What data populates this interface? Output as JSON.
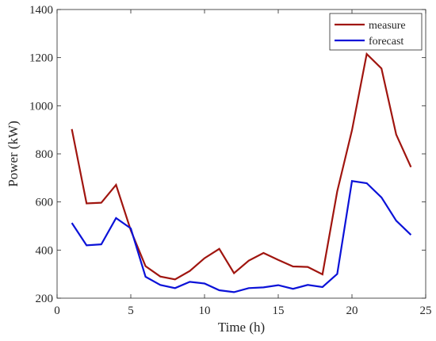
{
  "chart_data": {
    "type": "line",
    "title": "",
    "xlabel": "Time (h)",
    "ylabel": "Power (kW)",
    "xlim": [
      0,
      25
    ],
    "ylim": [
      200,
      1400
    ],
    "xticks": [
      0,
      5,
      10,
      15,
      20,
      25
    ],
    "yticks": [
      200,
      400,
      600,
      800,
      1000,
      1200,
      1400
    ],
    "grid": false,
    "legend": "top-right",
    "x": [
      1,
      2,
      3,
      4,
      5,
      6,
      7,
      8,
      9,
      10,
      11,
      12,
      13,
      14,
      15,
      16,
      17,
      18,
      19,
      20,
      21,
      22,
      23,
      24
    ],
    "series": [
      {
        "name": "measure",
        "color": "#a0150f",
        "values": [
          903,
          594,
          597,
          671,
          482,
          333,
          290,
          278,
          313,
          366,
          405,
          304,
          356,
          388,
          359,
          332,
          330,
          299,
          644,
          898,
          1215,
          1155,
          880,
          745
        ]
      },
      {
        "name": "forecast",
        "color": "#0b12d8",
        "values": [
          513,
          420,
          424,
          533,
          490,
          289,
          255,
          242,
          268,
          261,
          233,
          225,
          242,
          245,
          254,
          239,
          255,
          246,
          301,
          687,
          678,
          619,
          522,
          463
        ]
      }
    ]
  }
}
